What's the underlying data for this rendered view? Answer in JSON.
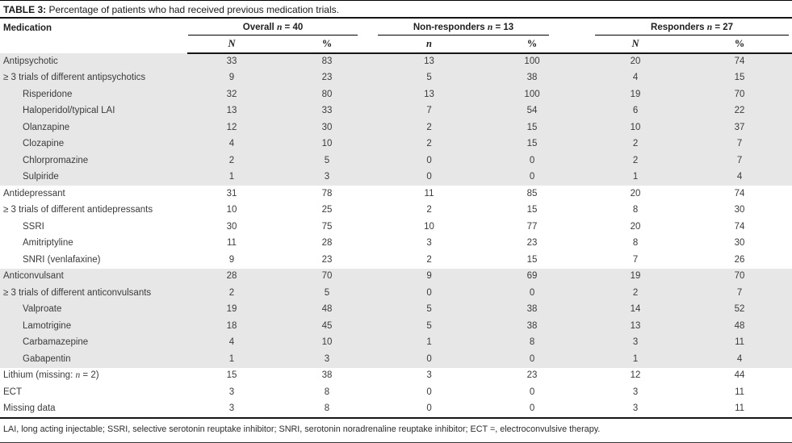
{
  "title": {
    "label": "TABLE 3:",
    "text": " Percentage of patients who had received previous medication trials."
  },
  "table": {
    "medication_header": "Medication",
    "groups": [
      {
        "prefix": "Overall ",
        "n": "n",
        "suffix": " = 40",
        "sub": [
          "N",
          "%"
        ]
      },
      {
        "prefix": "Non-responders ",
        "n": "n",
        "suffix": " = 13",
        "sub": [
          "n",
          "%"
        ]
      },
      {
        "prefix": "Responders ",
        "n": "n",
        "suffix": " = 27",
        "sub": [
          "N",
          "%"
        ]
      }
    ],
    "rows": [
      {
        "label": [
          {
            "t": "Antipsychotic",
            "i": false
          }
        ],
        "indent": 0,
        "shade": true,
        "values": [
          33,
          83,
          13,
          100,
          20,
          74
        ]
      },
      {
        "label": [
          {
            "t": "≥ 3 trials of different antipsychotics",
            "i": false
          }
        ],
        "indent": 0,
        "shade": true,
        "values": [
          9,
          23,
          5,
          38,
          4,
          15
        ]
      },
      {
        "label": [
          {
            "t": "Risperidone",
            "i": false
          }
        ],
        "indent": 1,
        "shade": true,
        "values": [
          32,
          80,
          13,
          100,
          19,
          70
        ]
      },
      {
        "label": [
          {
            "t": "Haloperidol/typical LAI",
            "i": false
          }
        ],
        "indent": 1,
        "shade": true,
        "values": [
          13,
          33,
          7,
          54,
          6,
          22
        ]
      },
      {
        "label": [
          {
            "t": "Olanzapine",
            "i": false
          }
        ],
        "indent": 1,
        "shade": true,
        "values": [
          12,
          30,
          2,
          15,
          10,
          37
        ]
      },
      {
        "label": [
          {
            "t": "Clozapine",
            "i": false
          }
        ],
        "indent": 1,
        "shade": true,
        "values": [
          4,
          10,
          2,
          15,
          2,
          7
        ]
      },
      {
        "label": [
          {
            "t": "Chlorpromazine",
            "i": false
          }
        ],
        "indent": 1,
        "shade": true,
        "values": [
          2,
          5,
          0,
          0,
          2,
          7
        ]
      },
      {
        "label": [
          {
            "t": "Sulpiride",
            "i": false
          }
        ],
        "indent": 1,
        "shade": true,
        "values": [
          1,
          3,
          0,
          0,
          1,
          4
        ]
      },
      {
        "label": [
          {
            "t": "Antidepressant",
            "i": false
          }
        ],
        "indent": 0,
        "shade": false,
        "values": [
          31,
          78,
          11,
          85,
          20,
          74
        ]
      },
      {
        "label": [
          {
            "t": "≥ 3 trials of different antidepressants",
            "i": false
          }
        ],
        "indent": 0,
        "shade": false,
        "values": [
          10,
          25,
          2,
          15,
          8,
          30
        ]
      },
      {
        "label": [
          {
            "t": "SSRI",
            "i": false
          }
        ],
        "indent": 1,
        "shade": false,
        "values": [
          30,
          75,
          10,
          77,
          20,
          74
        ]
      },
      {
        "label": [
          {
            "t": "Amitriptyline",
            "i": false
          }
        ],
        "indent": 1,
        "shade": false,
        "values": [
          11,
          28,
          3,
          23,
          8,
          30
        ]
      },
      {
        "label": [
          {
            "t": "SNRI (venlafaxine)",
            "i": false
          }
        ],
        "indent": 1,
        "shade": false,
        "values": [
          9,
          23,
          2,
          15,
          7,
          26
        ]
      },
      {
        "label": [
          {
            "t": "Anticonvulsant",
            "i": false
          }
        ],
        "indent": 0,
        "shade": true,
        "values": [
          28,
          70,
          9,
          69,
          19,
          70
        ]
      },
      {
        "label": [
          {
            "t": "≥ 3 trials of different anticonvulsants",
            "i": false
          }
        ],
        "indent": 0,
        "shade": true,
        "values": [
          2,
          5,
          0,
          0,
          2,
          7
        ]
      },
      {
        "label": [
          {
            "t": "Valproate",
            "i": false
          }
        ],
        "indent": 1,
        "shade": true,
        "values": [
          19,
          48,
          5,
          38,
          14,
          52
        ]
      },
      {
        "label": [
          {
            "t": "Lamotrigine",
            "i": false
          }
        ],
        "indent": 1,
        "shade": true,
        "values": [
          18,
          45,
          5,
          38,
          13,
          48
        ]
      },
      {
        "label": [
          {
            "t": "Carbamazepine",
            "i": false
          }
        ],
        "indent": 1,
        "shade": true,
        "values": [
          4,
          10,
          1,
          8,
          3,
          11
        ]
      },
      {
        "label": [
          {
            "t": "Gabapentin",
            "i": false
          }
        ],
        "indent": 1,
        "shade": true,
        "values": [
          1,
          3,
          0,
          0,
          1,
          4
        ]
      },
      {
        "label": [
          {
            "t": "Lithium (missing: ",
            "i": false
          },
          {
            "t": "n",
            "i": true
          },
          {
            "t": " = 2)",
            "i": false
          }
        ],
        "indent": 0,
        "shade": false,
        "values": [
          15,
          38,
          3,
          23,
          12,
          44
        ]
      },
      {
        "label": [
          {
            "t": "ECT",
            "i": false
          }
        ],
        "indent": 0,
        "shade": false,
        "values": [
          3,
          8,
          0,
          0,
          3,
          11
        ]
      },
      {
        "label": [
          {
            "t": "Missing data",
            "i": false
          }
        ],
        "indent": 0,
        "shade": false,
        "values": [
          3,
          8,
          0,
          0,
          3,
          11
        ]
      }
    ]
  },
  "footnote": "LAI, long acting injectable; SSRI, selective serotonin reuptake inhibitor; SNRI, serotonin noradrenaline reuptake inhibitor; ECT =, electroconvulsive therapy."
}
